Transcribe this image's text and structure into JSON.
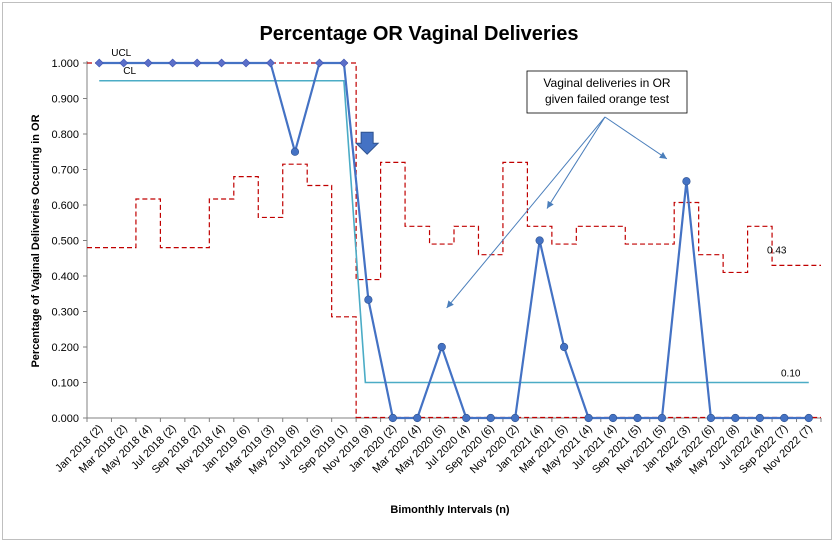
{
  "chart_data": {
    "type": "line",
    "title": "Percentage OR Vaginal Deliveries",
    "xlabel": "Bimonthly Intervals (n)",
    "ylabel": "Percentage of Vaginal Deliveries Occuring in OR",
    "ylim": [
      0,
      1
    ],
    "yticks": [
      "0.000",
      "0.100",
      "0.200",
      "0.300",
      "0.400",
      "0.500",
      "0.600",
      "0.700",
      "0.800",
      "0.900",
      "1.000"
    ],
    "categories": [
      "Jan 2018 (2)",
      "Mar 2018 (2)",
      "May 2018 (4)",
      "Jul 2018 (2)",
      "Sep 2018 (2)",
      "Nov 2018 (4)",
      "Jan 2019 (6)",
      "Mar 2019 (3)",
      "May 2019 (8)",
      "Jul 2019 (5)",
      "Sep 2019 (1)",
      "Nov 2019 (9)",
      "Jan 2020 (2)",
      "Mar 2020 (4)",
      "May 2020 (5)",
      "Jul 2020 (4)",
      "Sep 2020 (6)",
      "Nov 2020 (2)",
      "Jan 2021 (4)",
      "Mar 2021 (5)",
      "May 2021 (4)",
      "Jul 2021 (4)",
      "Sep 2021 (5)",
      "Nov 2021 (5)",
      "Jan 2022 (3)",
      "Mar 2022 (6)",
      "May 2022 (8)",
      "Jul 2022 (4)",
      "Sep 2022 (7)",
      "Nov 2022 (7)"
    ],
    "series": [
      {
        "values": [
          1,
          1,
          1,
          1,
          1,
          1,
          1,
          1,
          0.75,
          1,
          1,
          0.333,
          0,
          0,
          0.2,
          0,
          0,
          0,
          0.5,
          0.2,
          0,
          0,
          0,
          0,
          0.667,
          0,
          0,
          0,
          0,
          0
        ],
        "color": "#4472c4"
      }
    ],
    "cl": {
      "label": "CL",
      "segments": [
        {
          "from": 0,
          "to": 10,
          "value": 0.95
        },
        {
          "from": 11,
          "to": 29,
          "value": 0.1
        }
      ],
      "end_label": "0.10",
      "color": "#4bacc6"
    },
    "ucl": {
      "label": "UCL",
      "upper": [
        1,
        1,
        1,
        1,
        1,
        1,
        1,
        1,
        1,
        1,
        1,
        0.39,
        0.72,
        0.54,
        0.49,
        0.54,
        0.46,
        0.72,
        0.54,
        0.49,
        0.54,
        0.54,
        0.49,
        0.49,
        0.607,
        0.46,
        0.41,
        0.54,
        0.43,
        0.43
      ],
      "color": "#c00000"
    },
    "lcl": {
      "values": [
        0.48,
        0.48,
        0.617,
        0.48,
        0.48,
        0.617,
        0.68,
        0.565,
        0.715,
        0.655,
        0.285
      ],
      "end_label": "0.43"
    },
    "annotations": {
      "box_lines": [
        "Vaginal deliveries in OR",
        "given failed orange test"
      ],
      "arrow_targets": [
        [
          14.2,
          0.31
        ],
        [
          18.3,
          0.59
        ],
        [
          23.2,
          0.73
        ]
      ]
    },
    "down_arrow": {
      "index": 10.95,
      "value": 0.76
    },
    "grid": false,
    "legend": "none"
  }
}
